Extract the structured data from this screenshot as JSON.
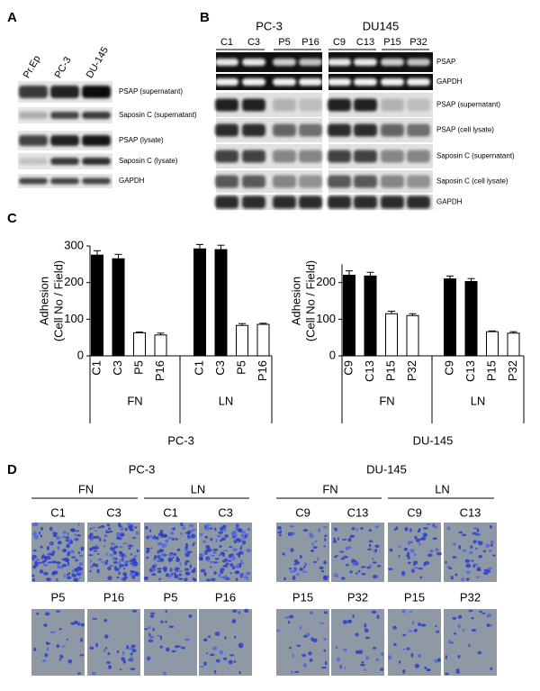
{
  "panel_labels": [
    "A",
    "B",
    "C",
    "D"
  ],
  "panel_a": {
    "lanes": [
      "Pr.Ep",
      "PC-3",
      "DU-145"
    ],
    "rows": [
      "PSAP (supernatant)",
      "Saposin C (supernatant)",
      "PSAP (lysate)",
      "Saposin C (lysate)",
      "GAPDH"
    ]
  },
  "panel_b": {
    "groups": [
      {
        "name": "PC-3",
        "lanes": [
          "C1",
          "C3",
          "P5",
          "P16"
        ]
      },
      {
        "name": "DU145",
        "lanes": [
          "C9",
          "C13",
          "P15",
          "P32"
        ]
      }
    ],
    "rows": [
      "PSAP",
      "GAPDH",
      "PSAP (supernatant)",
      "PSAP (cell lysate)",
      "Saposin C (supernatant)",
      "Saposin C (cell lysate)",
      "GAPDH"
    ]
  },
  "chart_data": [
    {
      "type": "bar",
      "y_label": [
        "Adhesion",
        "(Cell No / Field)"
      ],
      "x_label": "PC-3",
      "group_labels": [
        "FN",
        "LN"
      ],
      "categories": [
        "C1",
        "C3",
        "P5",
        "P16",
        "C1",
        "C3",
        "P5",
        "P16"
      ],
      "values": [
        275,
        265,
        63,
        57,
        292,
        290,
        83,
        86
      ],
      "errors": [
        12,
        12,
        2,
        5,
        12,
        12,
        5,
        3
      ],
      "colors": [
        "#000000",
        "#000000",
        "#ffffff",
        "#ffffff",
        "#000000",
        "#000000",
        "#ffffff",
        "#ffffff"
      ],
      "ylim": [
        0,
        300
      ],
      "yticks": [
        0,
        100,
        200,
        300
      ]
    },
    {
      "type": "bar",
      "y_label": [
        "Adhesion",
        "(Cell No / Field)"
      ],
      "x_label": "DU-145",
      "group_labels": [
        "FN",
        "LN"
      ],
      "categories": [
        "C9",
        "C13",
        "P15",
        "P32",
        "C9",
        "C13",
        "P15",
        "P32"
      ],
      "values": [
        220,
        218,
        115,
        110,
        210,
        203,
        66,
        62
      ],
      "errors": [
        12,
        10,
        7,
        5,
        8,
        8,
        2,
        4
      ],
      "colors": [
        "#000000",
        "#000000",
        "#ffffff",
        "#ffffff",
        "#000000",
        "#000000",
        "#ffffff",
        "#ffffff"
      ],
      "ylim": [
        0,
        250
      ],
      "yticks": [
        0,
        100,
        200
      ]
    }
  ],
  "panel_d": {
    "groups": [
      {
        "name": "PC-3",
        "conditions": [
          "FN",
          "LN"
        ],
        "top": [
          "C1",
          "C3",
          "C1",
          "C3"
        ],
        "bottom": [
          "P5",
          "P16",
          "P5",
          "P16"
        ]
      },
      {
        "name": "DU-145",
        "conditions": [
          "FN",
          "LN"
        ],
        "top": [
          "C9",
          "C13",
          "C9",
          "C13"
        ],
        "bottom": [
          "P15",
          "P32",
          "P15",
          "P32"
        ]
      }
    ]
  }
}
